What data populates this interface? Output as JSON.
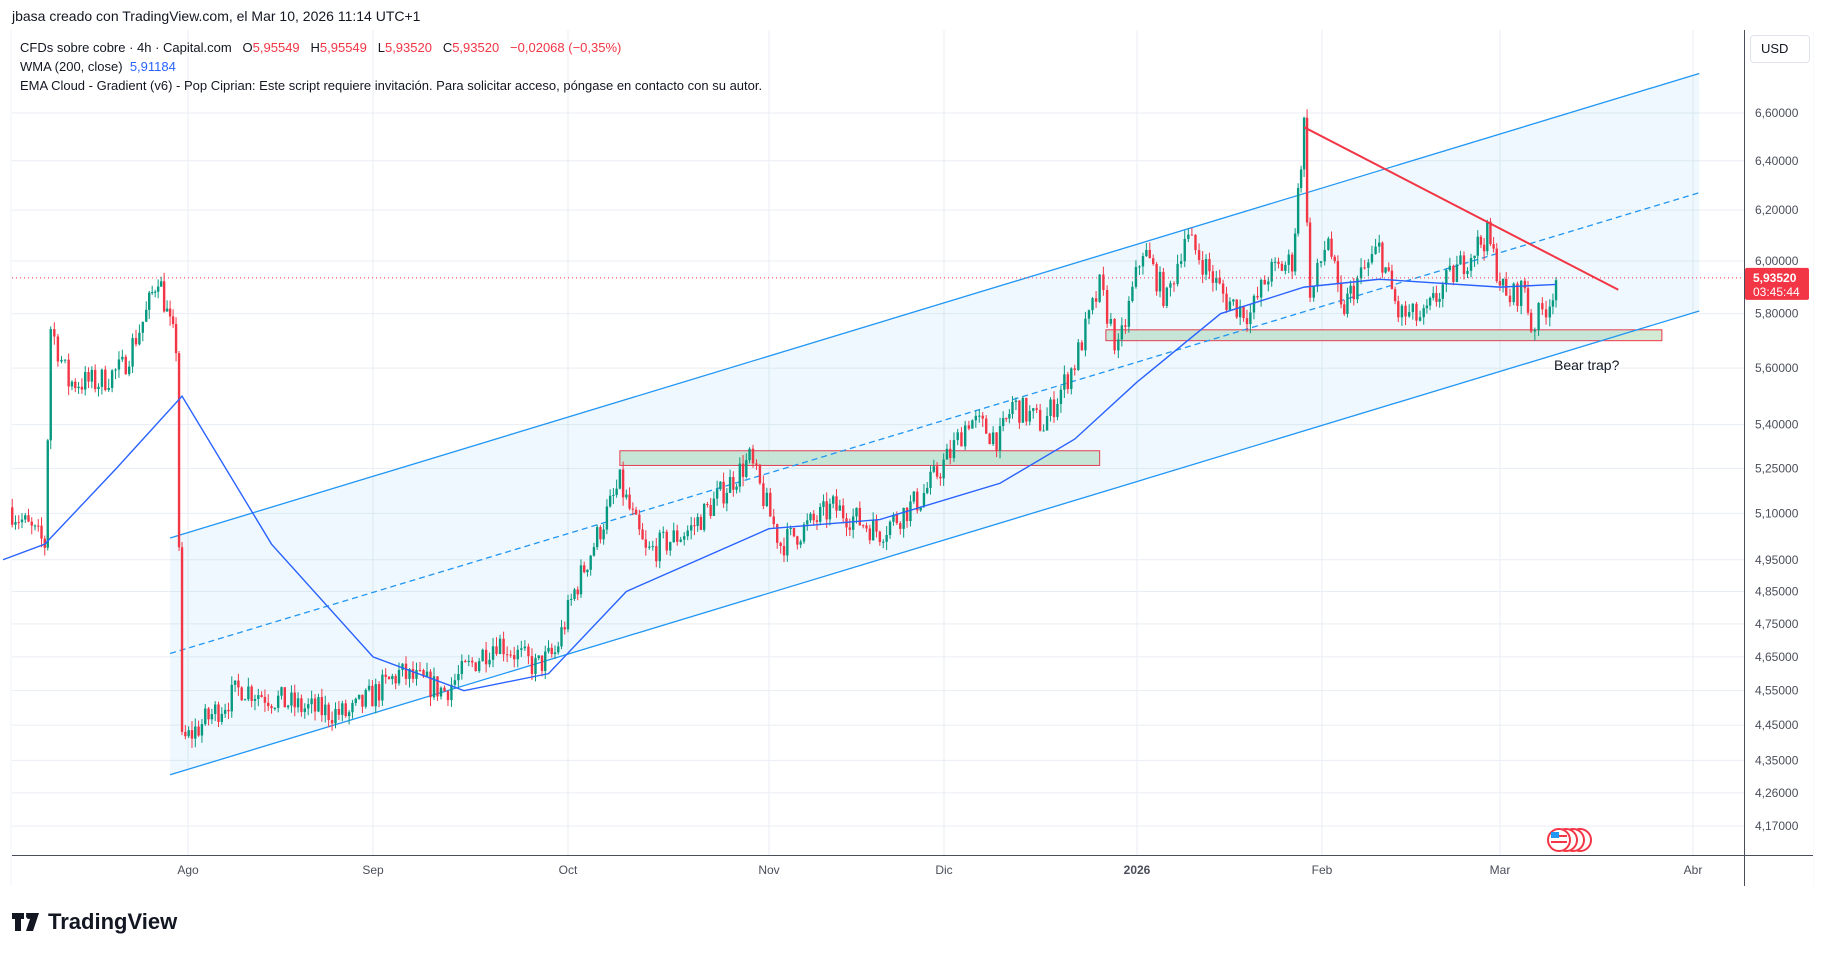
{
  "credit": "jbasa creado con TradingView.com, el Mar 10, 2026 11:14 UTC+1",
  "legend": {
    "symbol": "CFDs sobre cobre · 4h · Capital.com",
    "o_label": "O",
    "o": "5,95549",
    "h_label": "H",
    "h": "5,95549",
    "l_label": "L",
    "l": "5,93520",
    "c_label": "C",
    "c": "5,93520",
    "change": "−0,02068 (−0,35%)",
    "wma_label": "WMA (200, close)",
    "wma_value": "5,91184",
    "ema_cloud": "EMA Cloud - Gradient (v6) - Pop Ciprian: Este script requiere invitación. Para solicitar acceso, póngase en contacto con su autor."
  },
  "currency": "USD",
  "logo": "TradingView",
  "colors": {
    "up": "#089981",
    "down": "#f23645",
    "wma": "#2962ff",
    "channel": "#2196f3",
    "trend": "#f23645",
    "zone_fill": "#c8e6c9",
    "zone_border": "#f23645"
  },
  "chart_data": {
    "type": "candlestick",
    "title": "CFDs sobre cobre · 4h · Capital.com",
    "y_scale": "log",
    "ylim": [
      4.12,
      6.75
    ],
    "y_ticks": [
      "6,60000",
      "6,40000",
      "6,20000",
      "6,00000",
      "5,80000",
      "5,60000",
      "5,40000",
      "5,25000",
      "5,10000",
      "4,95000",
      "4,85000",
      "4,75000",
      "4,65000",
      "4,55000",
      "4,45000",
      "4,35000",
      "4,26000",
      "4,17000"
    ],
    "x_ticks": [
      {
        "label": "Ago",
        "date": "2025-08-01"
      },
      {
        "label": "Sep",
        "date": "2025-09-01"
      },
      {
        "label": "Oct",
        "date": "2025-10-01"
      },
      {
        "label": "Nov",
        "date": "2025-11-01"
      },
      {
        "label": "Dic",
        "date": "2025-12-01"
      },
      {
        "label": "2026",
        "date": "2026-01-01"
      },
      {
        "label": "Feb",
        "date": "2026-02-01"
      },
      {
        "label": "Mar",
        "date": "2026-03-01"
      },
      {
        "label": "Abr",
        "date": "2026-04-01"
      }
    ],
    "last_price": {
      "value": 5.9352,
      "label": "5,93520",
      "countdown": "03:45:44"
    },
    "close_path": [
      [
        "2025-07-02",
        5.12
      ],
      [
        "2025-07-08",
        5.0
      ],
      [
        "2025-07-09",
        5.75
      ],
      [
        "2025-07-12",
        5.55
      ],
      [
        "2025-07-17",
        5.55
      ],
      [
        "2025-07-21",
        5.6
      ],
      [
        "2025-07-25",
        5.8
      ],
      [
        "2025-07-27",
        5.95
      ],
      [
        "2025-07-29",
        5.75
      ],
      [
        "2025-07-30",
        5.68
      ],
      [
        "2025-07-31",
        4.4
      ],
      [
        "2025-08-05",
        4.48
      ],
      [
        "2025-08-10",
        4.56
      ],
      [
        "2025-08-20",
        4.5
      ],
      [
        "2025-08-28",
        4.48
      ],
      [
        "2025-09-05",
        4.6
      ],
      [
        "2025-09-12",
        4.55
      ],
      [
        "2025-09-20",
        4.7
      ],
      [
        "2025-09-26",
        4.62
      ],
      [
        "2025-09-29",
        4.66
      ],
      [
        "2025-10-02",
        4.85
      ],
      [
        "2025-10-06",
        5.05
      ],
      [
        "2025-10-09",
        5.2
      ],
      [
        "2025-10-13",
        4.97
      ],
      [
        "2025-10-20",
        5.05
      ],
      [
        "2025-10-24",
        5.15
      ],
      [
        "2025-10-29",
        5.28
      ],
      [
        "2025-11-03",
        5.0
      ],
      [
        "2025-11-07",
        5.05
      ],
      [
        "2025-11-12",
        5.12
      ],
      [
        "2025-11-20",
        5.04
      ],
      [
        "2025-11-27",
        5.15
      ],
      [
        "2025-12-02",
        5.3
      ],
      [
        "2025-12-05",
        5.42
      ],
      [
        "2025-12-10",
        5.35
      ],
      [
        "2025-12-12",
        5.47
      ],
      [
        "2025-12-17",
        5.4
      ],
      [
        "2025-12-22",
        5.62
      ],
      [
        "2025-12-26",
        5.9
      ],
      [
        "2025-12-29",
        5.66
      ],
      [
        "2026-01-02",
        6.05
      ],
      [
        "2026-01-06",
        5.85
      ],
      [
        "2026-01-09",
        6.1
      ],
      [
        "2026-01-12",
        6.0
      ],
      [
        "2026-01-16",
        5.85
      ],
      [
        "2026-01-20",
        5.8
      ],
      [
        "2026-01-23",
        5.95
      ],
      [
        "2026-01-27",
        6.0
      ],
      [
        "2026-01-29",
        6.55
      ],
      [
        "2026-01-30",
        5.85
      ],
      [
        "2026-02-02",
        6.1
      ],
      [
        "2026-02-04",
        5.8
      ],
      [
        "2026-02-06",
        5.9
      ],
      [
        "2026-02-10",
        6.05
      ],
      [
        "2026-02-13",
        5.8
      ],
      [
        "2026-02-17",
        5.78
      ],
      [
        "2026-02-20",
        5.9
      ],
      [
        "2026-02-25",
        6.05
      ],
      [
        "2026-02-27",
        6.1
      ],
      [
        "2026-03-02",
        5.85
      ],
      [
        "2026-03-05",
        5.9
      ],
      [
        "2026-03-06",
        5.75
      ],
      [
        "2026-03-09",
        5.85
      ],
      [
        "2026-03-10",
        5.935
      ]
    ],
    "wma_path": [
      [
        "2025-07-01",
        4.95
      ],
      [
        "2025-07-08",
        5.0
      ],
      [
        "2025-07-20",
        5.25
      ],
      [
        "2025-07-31",
        5.5
      ],
      [
        "2025-08-15",
        5.0
      ],
      [
        "2025-09-01",
        4.65
      ],
      [
        "2025-09-15",
        4.55
      ],
      [
        "2025-09-28",
        4.6
      ],
      [
        "2025-10-10",
        4.85
      ],
      [
        "2025-11-01",
        5.05
      ],
      [
        "2025-11-20",
        5.08
      ],
      [
        "2025-12-10",
        5.2
      ],
      [
        "2025-12-22",
        5.35
      ],
      [
        "2026-01-01",
        5.55
      ],
      [
        "2026-01-15",
        5.8
      ],
      [
        "2026-01-29",
        5.9
      ],
      [
        "2026-02-10",
        5.93
      ],
      [
        "2026-03-01",
        5.9
      ],
      [
        "2026-03-10",
        5.91
      ]
    ],
    "channel": {
      "upper": [
        [
          "2025-07-29",
          5.02
        ],
        [
          "2026-04-02",
          6.77
        ]
      ],
      "middle": [
        [
          "2025-07-29",
          4.66
        ],
        [
          "2026-04-02",
          6.27
        ]
      ],
      "lower": [
        [
          "2025-07-29",
          4.31
        ],
        [
          "2026-04-02",
          5.81
        ]
      ]
    },
    "trendline": [
      [
        "2026-01-29",
        6.54
      ],
      [
        "2026-03-20",
        5.89
      ]
    ],
    "zones": [
      {
        "from": "2025-10-09",
        "to": "2025-12-26",
        "low": 5.26,
        "high": 5.31
      },
      {
        "from": "2025-12-27",
        "to": "2026-03-27",
        "low": 5.7,
        "high": 5.74
      }
    ],
    "annotation": {
      "text": "Bear trap?",
      "date": "2026-03-09",
      "price": 5.63
    }
  }
}
